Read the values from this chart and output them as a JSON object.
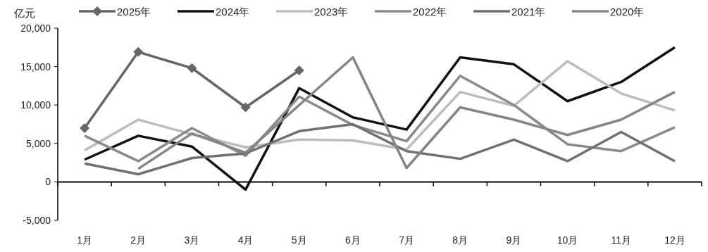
{
  "chart_data": {
    "type": "line",
    "ylabel": "亿元",
    "categories": [
      "1月",
      "2月",
      "3月",
      "4月",
      "5月",
      "6月",
      "7月",
      "8月",
      "9月",
      "10月",
      "11月",
      "12月"
    ],
    "ylim": [
      -5000,
      20000
    ],
    "yticks": [
      {
        "value": -5000,
        "label": "-5,000"
      },
      0,
      {
        "value": 5000,
        "label": "5,000"
      },
      {
        "value": 10000,
        "label": "10,000"
      },
      {
        "value": 15000,
        "label": "15,000"
      },
      {
        "value": 20000,
        "label": "20,000"
      }
    ],
    "legend": "top",
    "line_style": "solid",
    "series": [
      {
        "name": "2025年",
        "color": "#666666",
        "marker": "diamond",
        "values": [
          7000,
          16900,
          14800,
          9700,
          14500,
          null,
          null,
          null,
          null,
          null,
          null,
          null
        ]
      },
      {
        "name": "2024年",
        "color": "#111111",
        "values": [
          2900,
          6000,
          4600,
          -1000,
          12200,
          8400,
          6800,
          16200,
          15300,
          10500,
          13000,
          17500
        ]
      },
      {
        "name": "2023年",
        "color": "#bdbdbd",
        "values": [
          4100,
          8100,
          6200,
          4500,
          5500,
          5400,
          4200,
          11700,
          9900,
          15700,
          11500,
          9300
        ]
      },
      {
        "name": "2022年",
        "color": "#8a8a8a",
        "values": [
          6000,
          2700,
          7000,
          3400,
          11100,
          7400,
          5300,
          13800,
          10000,
          4900,
          4000,
          7100
        ]
      },
      {
        "name": "2021年",
        "color": "#707070",
        "values": [
          2400,
          1000,
          3100,
          3700,
          6600,
          7500,
          4000,
          3000,
          5500,
          2700,
          6500,
          2700
        ]
      },
      {
        "name": "2020年",
        "color": "#858585",
        "values": [
          null,
          1700,
          6300,
          3800,
          10000,
          16200,
          1800,
          9700,
          8100,
          6100,
          8100,
          11700
        ]
      }
    ]
  }
}
